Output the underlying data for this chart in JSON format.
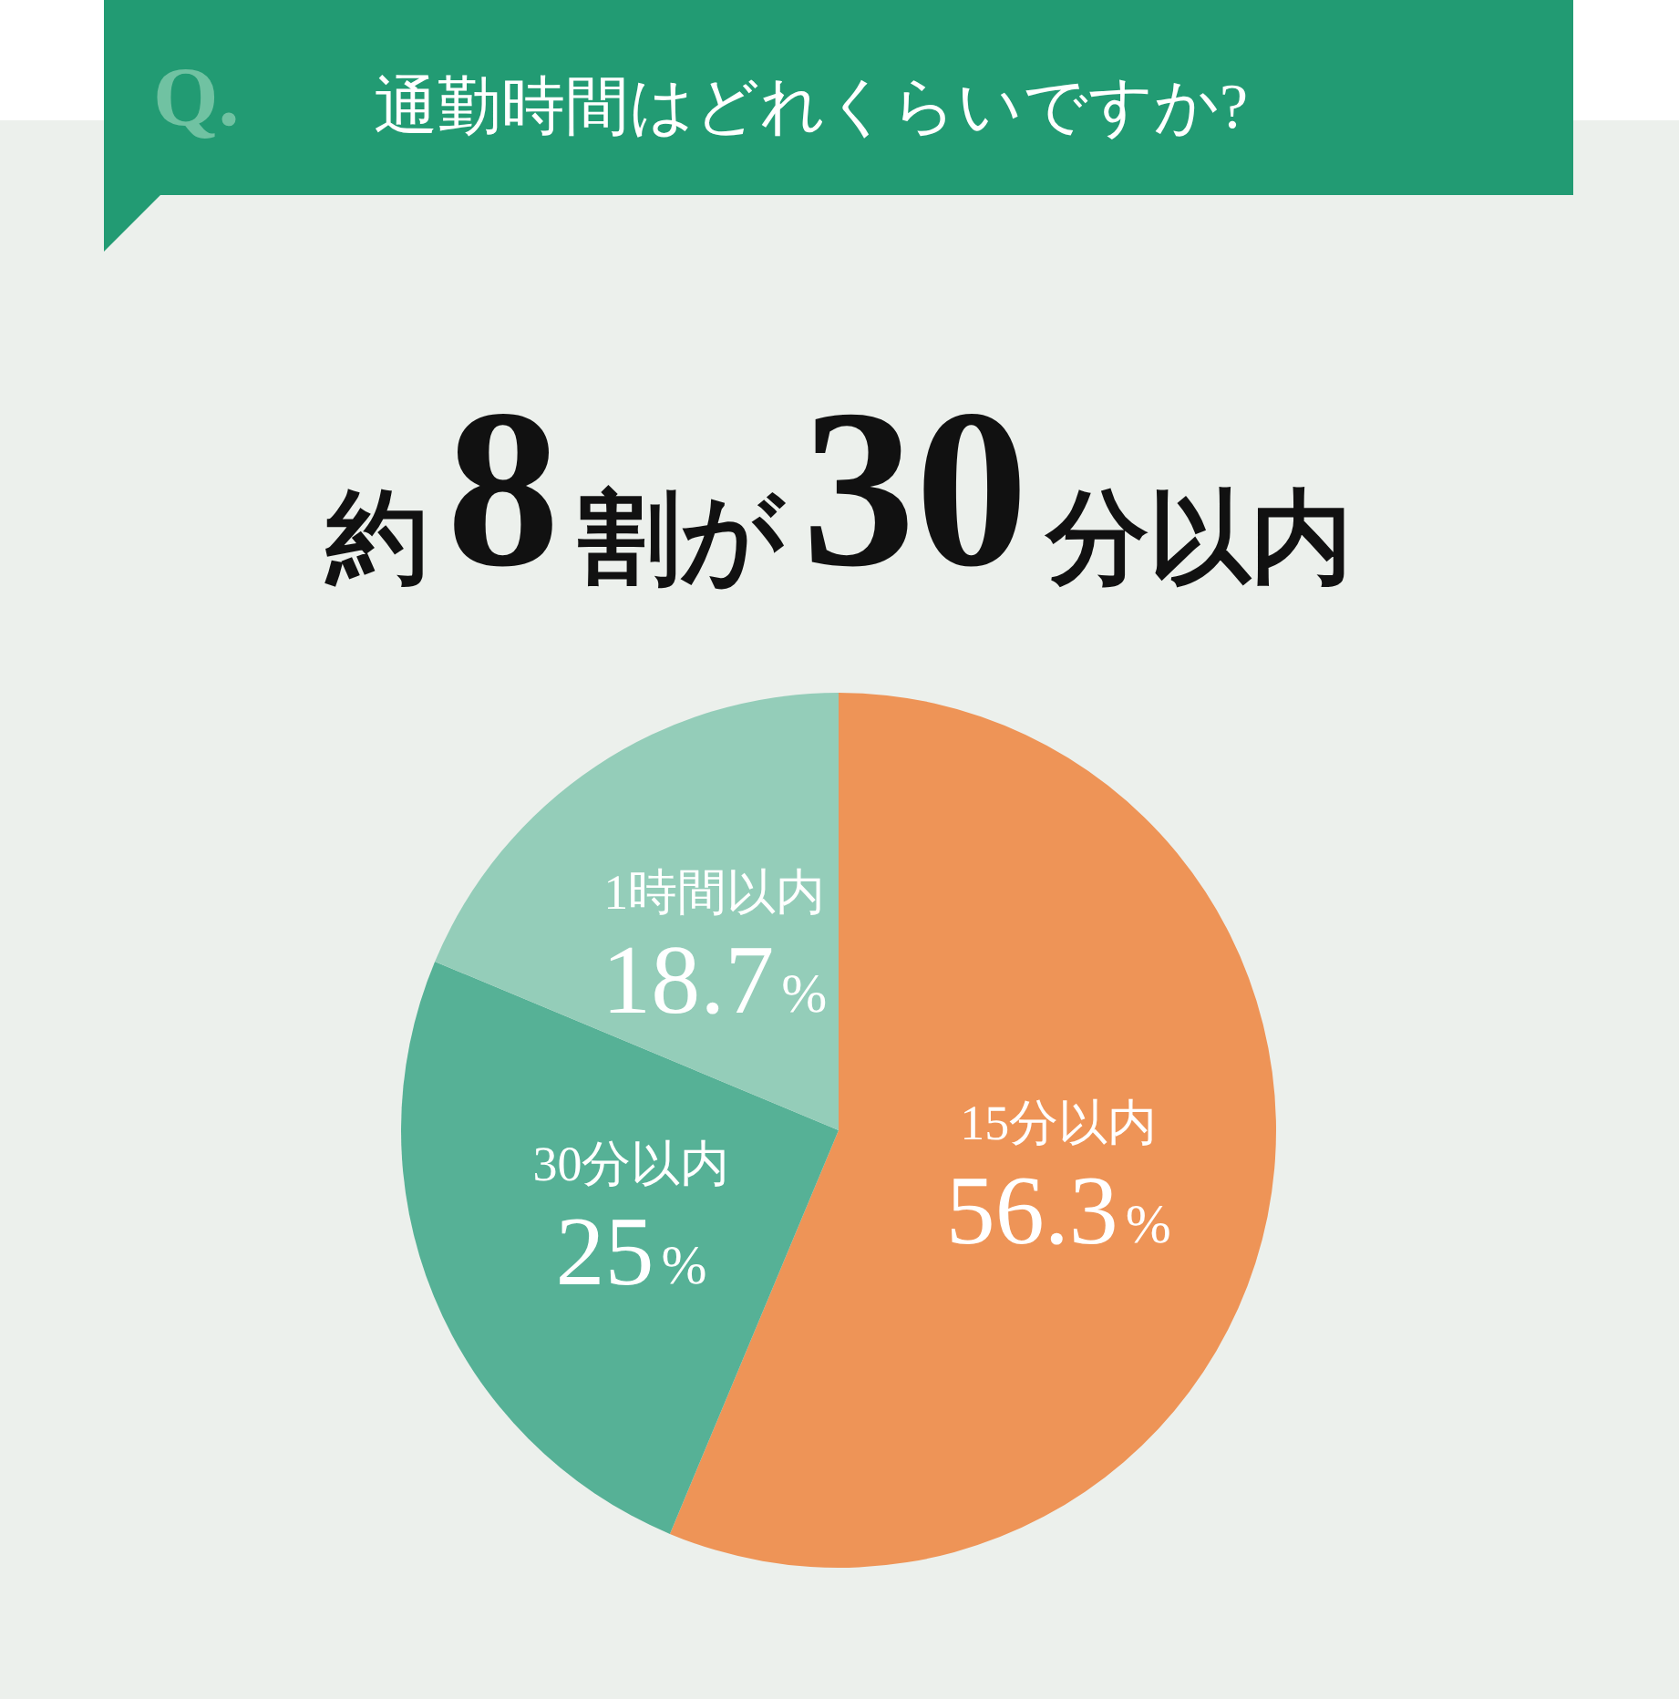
{
  "chart_data": {
    "type": "pie",
    "title": "通勤時間はどれくらいですか?",
    "subtitle": "約8割が30分以内",
    "annotations": [
      "Q."
    ],
    "categories": [
      "15分以内",
      "30分以内",
      "1時間以内"
    ],
    "values": [
      56.3,
      25,
      18.7
    ],
    "value_labels": [
      "56.3%",
      "25%",
      "18.7%"
    ],
    "colors": [
      "#ee9457",
      "#56b196",
      "#94cdb9"
    ]
  }
}
